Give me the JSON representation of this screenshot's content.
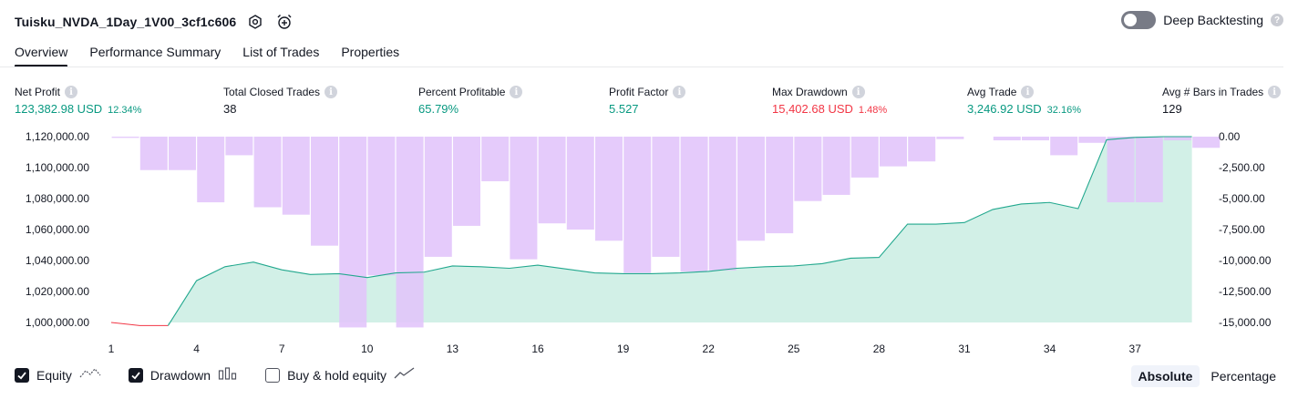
{
  "header": {
    "strategy_name": "Tuisku_NVDA_1Day_1V00_3cf1c606",
    "settings_icon": "gear-icon",
    "alert_icon": "alarm-clock-plus-icon",
    "deep_backtesting_label": "Deep Backtesting",
    "deep_backtesting_enabled": false
  },
  "tabs": [
    {
      "label": "Overview",
      "active": true
    },
    {
      "label": "Performance Summary",
      "active": false
    },
    {
      "label": "List of Trades",
      "active": false
    },
    {
      "label": "Properties",
      "active": false
    }
  ],
  "metrics": [
    {
      "label": "Net Profit",
      "value": "123,382.98 USD",
      "pct": "12.34%",
      "color": "positive"
    },
    {
      "label": "Total Closed Trades",
      "value": "38",
      "pct": "",
      "color": "neutral"
    },
    {
      "label": "Percent Profitable",
      "value": "65.79%",
      "pct": "",
      "color": "positive"
    },
    {
      "label": "Profit Factor",
      "value": "5.527",
      "pct": "",
      "color": "positive"
    },
    {
      "label": "Max Drawdown",
      "value": "15,402.68 USD",
      "pct": "1.48%",
      "color": "negative"
    },
    {
      "label": "Avg Trade",
      "value": "3,246.92 USD",
      "pct": "32.16%",
      "color": "positive"
    },
    {
      "label": "Avg # Bars in Trades",
      "value": "129",
      "pct": "",
      "color": "neutral"
    }
  ],
  "colors": {
    "positive": "#089981",
    "negative": "#f23645",
    "neutral": "#131722",
    "drawdown_bar": "#e1c4fb",
    "drawdown_overlap": "#b9bdf0",
    "equity_line": "#22a88e",
    "equity_fill": "#cdeee4",
    "equity_negative_line": "#f23645"
  },
  "chart_data": {
    "type": "bar+area",
    "x_ticks": [
      "1",
      "4",
      "7",
      "10",
      "13",
      "16",
      "19",
      "22",
      "25",
      "28",
      "31",
      "34",
      "37"
    ],
    "x_range": [
      1,
      39
    ],
    "left_axis": {
      "labels": [
        "1,120,000.00",
        "1,100,000.00",
        "1,080,000.00",
        "1,060,000.00",
        "1,040,000.00",
        "1,020,000.00",
        "1,000,000.00"
      ],
      "ticks": [
        1120000,
        1100000,
        1080000,
        1060000,
        1040000,
        1020000,
        1000000
      ],
      "range": [
        1000000,
        1120000
      ]
    },
    "right_axis": {
      "labels": [
        "0.00",
        "-2,500.00",
        "-5,000.00",
        "-7,500.00",
        "-10,000.00",
        "-12,500.00",
        "-15,000.00"
      ],
      "ticks": [
        0,
        -2500,
        -5000,
        -7500,
        -10000,
        -12500,
        -15000
      ],
      "range": [
        -15000,
        0
      ]
    },
    "series": [
      {
        "name": "Equity",
        "type": "area",
        "x": [
          1,
          2,
          3,
          4,
          5,
          6,
          7,
          8,
          9,
          10,
          11,
          12,
          13,
          14,
          15,
          16,
          17,
          18,
          19,
          20,
          21,
          22,
          23,
          24,
          25,
          26,
          27,
          28,
          29,
          30,
          31,
          32,
          33,
          34,
          35,
          36,
          37,
          38,
          39
        ],
        "values": [
          1000000,
          998000,
          998000,
          1027000,
          1036000,
          1039000,
          1034000,
          1031000,
          1031500,
          1029000,
          1032000,
          1032500,
          1036500,
          1036000,
          1035000,
          1037000,
          1034500,
          1032000,
          1031500,
          1031500,
          1032000,
          1033000,
          1035000,
          1036000,
          1036500,
          1038000,
          1041500,
          1042000,
          1063500,
          1063500,
          1064500,
          1073000,
          1076500,
          1077500,
          1073500,
          1118000,
          1119500,
          1120000,
          1120000
        ]
      },
      {
        "name": "Drawdown",
        "type": "bar",
        "x": [
          1,
          2,
          3,
          4,
          5,
          6,
          7,
          8,
          9,
          10,
          11,
          12,
          13,
          14,
          15,
          16,
          17,
          18,
          19,
          20,
          21,
          22,
          23,
          24,
          25,
          26,
          27,
          28,
          29,
          30,
          31,
          32,
          33,
          34,
          35,
          36,
          37,
          38,
          39
        ],
        "values": [
          -100,
          -2700,
          -2700,
          -5300,
          -1500,
          -5700,
          -6300,
          -8800,
          -15400,
          -11200,
          -15400,
          -9700,
          -7200,
          -3600,
          -9900,
          -7000,
          -7500,
          -8400,
          -11000,
          -9700,
          -10900,
          -10800,
          -8400,
          -7800,
          -5200,
          -4700,
          -3300,
          -2400,
          -2000,
          -200,
          0,
          -300,
          -300,
          -1500,
          -500,
          -5300,
          -5300,
          -300,
          -900
        ]
      }
    ],
    "legend": [
      {
        "label": "Equity",
        "checked": true,
        "icon": "equity-line-icon"
      },
      {
        "label": "Drawdown",
        "checked": true,
        "icon": "drawdown-bars-icon"
      },
      {
        "label": "Buy & hold equity",
        "checked": false,
        "icon": "buy-hold-line-icon"
      }
    ]
  },
  "modes": [
    {
      "label": "Absolute",
      "active": true
    },
    {
      "label": "Percentage",
      "active": false
    }
  ]
}
